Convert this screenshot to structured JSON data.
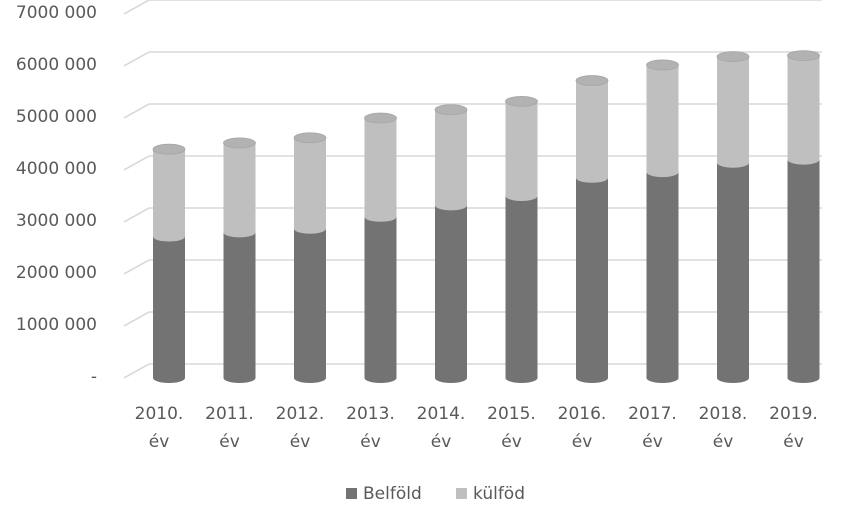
{
  "chart_data": {
    "type": "bar",
    "stacked": true,
    "style": "3d-cylinder",
    "categories": [
      "2010. év",
      "2011. év",
      "2012. év",
      "2013. év",
      "2014. év",
      "2015. év",
      "2016. év",
      "2017. év",
      "2018. év",
      "2019. év"
    ],
    "category_lines": [
      [
        "2010.",
        "év"
      ],
      [
        "2011.",
        "év"
      ],
      [
        "2012.",
        "év"
      ],
      [
        "2013.",
        "év"
      ],
      [
        "2014.",
        "év"
      ],
      [
        "2015.",
        "év"
      ],
      [
        "2016.",
        "év"
      ],
      [
        "2017.",
        "év"
      ],
      [
        "2018.",
        "év"
      ],
      [
        "2019.",
        "év"
      ]
    ],
    "series": [
      {
        "name": "Belföld",
        "color": "#737373",
        "values": [
          2720000,
          2800000,
          2870000,
          3100000,
          3320000,
          3500000,
          3850000,
          3960000,
          4140000,
          4200000
        ]
      },
      {
        "name": "külföd",
        "color": "#bfbfbf",
        "values": [
          1680000,
          1720000,
          1750000,
          1900000,
          1840000,
          1820000,
          1870000,
          2060000,
          2040000,
          2000000
        ]
      }
    ],
    "yticks": [
      "-",
      "1000 000",
      "2000 000",
      "3000 000",
      "4000 000",
      "5000 000",
      "6000 000",
      "7000 000"
    ],
    "ylim": [
      0,
      7000000
    ],
    "grid": true,
    "legend_position": "bottom",
    "title": "",
    "xlabel": "",
    "ylabel": ""
  }
}
